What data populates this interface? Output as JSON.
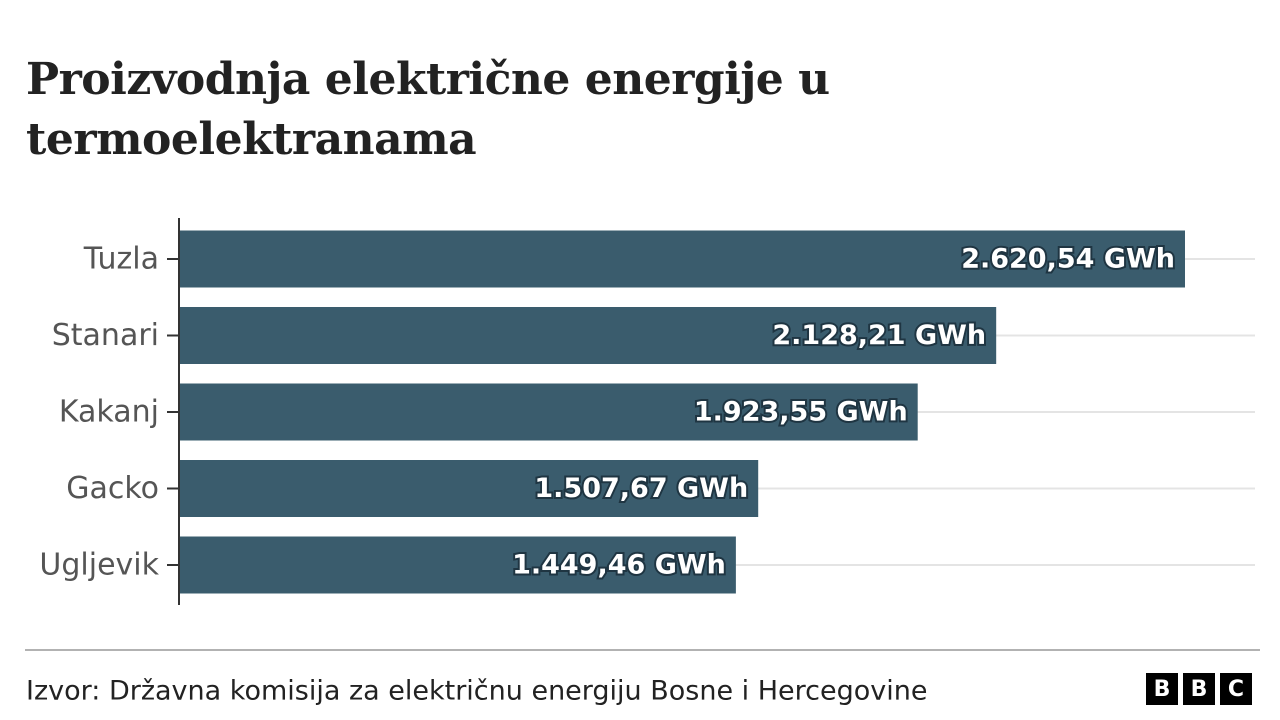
{
  "chart_data": {
    "type": "bar",
    "orientation": "horizontal",
    "title": "Proizvodnja električne energije u termoelektranama",
    "categories": [
      "Tuzla",
      "Stanari",
      "Kakanj",
      "Gacko",
      "Ugljevik"
    ],
    "values": [
      2620.54,
      2128.21,
      1923.55,
      1507.67,
      1449.46
    ],
    "value_labels": [
      "2.620,54 GWh",
      "2.128,21 GWh",
      "1.923,55 GWh",
      "1.507,67 GWh",
      "1.449,46 GWh"
    ],
    "color": "#3a5c6d",
    "source": "Izvor: Državna komisija za električnu energiju Bosne i Hercegovine",
    "logo": [
      "B",
      "B",
      "C"
    ]
  }
}
